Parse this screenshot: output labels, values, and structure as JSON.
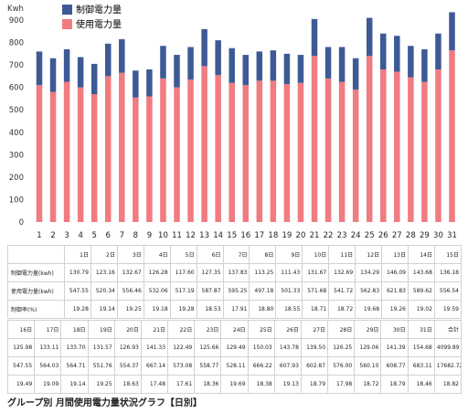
{
  "chart_data": {
    "type": "bar",
    "stacked": true,
    "ylabel": "Kwh",
    "ylim": [
      0,
      900
    ],
    "yticks": [
      0,
      100,
      200,
      300,
      400,
      500,
      600,
      700,
      800,
      900
    ],
    "grid": false,
    "legend_position": "top-left",
    "categories": [
      "1",
      "2",
      "3",
      "4",
      "5",
      "6",
      "7",
      "8",
      "9",
      "10",
      "11",
      "12",
      "13",
      "14",
      "15",
      "16",
      "17",
      "18",
      "19",
      "20",
      "21",
      "22",
      "23",
      "24",
      "25",
      "26",
      "27",
      "28",
      "29",
      "30",
      "31"
    ],
    "series": [
      {
        "name": "使用電力量",
        "color": "#f07b80",
        "values": [
          547.55,
          520.34,
          556.46,
          532.06,
          517.19,
          587.87,
          595.25,
          497.18,
          501.33,
          571.68,
          541.72,
          562.83,
          621.83,
          589.62,
          556.54,
          547.55,
          564.03,
          564.71,
          551.76,
          554.37,
          667.14,
          573.08,
          558.77,
          528.11,
          666.22,
          607.93,
          602.87,
          576.0,
          560.1,
          608.77,
          683.11
        ]
      },
      {
        "name": "制御電力量",
        "color": "#3d5a96",
        "values": [
          130.79,
          123.16,
          132.67,
          126.28,
          117.6,
          127.35,
          137.83,
          113.25,
          111.43,
          131.67,
          132.69,
          134.29,
          146.09,
          143.68,
          136.18,
          125.98,
          133.11,
          133.7,
          131.57,
          126.93,
          141.33,
          122.49,
          125.66,
          129.49,
          150.03,
          143.78,
          139.5,
          126.25,
          129.06,
          141.39,
          154.68
        ]
      }
    ],
    "chart_values_visual": {
      "bottom": [
        610,
        580,
        625,
        600,
        570,
        650,
        665,
        555,
        560,
        640,
        600,
        635,
        695,
        655,
        620,
        610,
        630,
        630,
        615,
        620,
        740,
        640,
        625,
        590,
        740,
        680,
        670,
        645,
        625,
        680,
        765
      ],
      "top": [
        760,
        730,
        770,
        735,
        705,
        795,
        815,
        675,
        680,
        785,
        745,
        780,
        860,
        810,
        775,
        745,
        760,
        765,
        750,
        745,
        905,
        780,
        780,
        730,
        910,
        840,
        830,
        785,
        770,
        840,
        935
      ]
    }
  },
  "table1": {
    "headers": [
      "",
      "1日",
      "2日",
      "3日",
      "4日",
      "5日",
      "6日",
      "7日",
      "8日",
      "9日",
      "10日",
      "11日",
      "12日",
      "13日",
      "14日",
      "15日"
    ],
    "rows": [
      [
        "制御電力量(kwh)",
        "130.79",
        "123.16",
        "132.67",
        "126.28",
        "117.60",
        "127.35",
        "137.83",
        "113.25",
        "111.43",
        "131.67",
        "132.69",
        "134.29",
        "146.09",
        "143.68",
        "136.18"
      ],
      [
        "使用電力量(kwh)",
        "547.55",
        "520.34",
        "556.46",
        "532.06",
        "517.19",
        "587.87",
        "595.25",
        "497.18",
        "501.33",
        "571.68",
        "541.72",
        "562.83",
        "621.83",
        "589.62",
        "556.54"
      ],
      [
        "制御率(%)",
        "19.28",
        "19.14",
        "19.25",
        "19.18",
        "19.28",
        "18.53",
        "17.91",
        "18.80",
        "18.55",
        "18.71",
        "18.72",
        "19.68",
        "19.26",
        "19.02",
        "19.59"
      ]
    ]
  },
  "table2": {
    "headers": [
      "16日",
      "17日",
      "18日",
      "19日",
      "20日",
      "21日",
      "22日",
      "23日",
      "24日",
      "25日",
      "26日",
      "27日",
      "28日",
      "29日",
      "30日",
      "31日",
      "合計"
    ],
    "rows": [
      [
        "125.98",
        "133.11",
        "133.70",
        "131.57",
        "126.93",
        "141.33",
        "122.49",
        "125.66",
        "129.49",
        "150.03",
        "143.78",
        "139.50",
        "126.25",
        "129.06",
        "141.39",
        "154.68",
        "4099.89"
      ],
      [
        "547.55",
        "564.03",
        "564.71",
        "551.76",
        "554.37",
        "667.14",
        "573.08",
        "558.77",
        "528.11",
        "666.22",
        "607.93",
        "602.87",
        "576.00",
        "560.10",
        "608.77",
        "683.11",
        "17682.72"
      ],
      [
        "19.49",
        "19.09",
        "19.14",
        "19.25",
        "18.63",
        "17.48",
        "17.61",
        "18.36",
        "19.69",
        "18.38",
        "19.13",
        "18.79",
        "17.98",
        "18.72",
        "18.79",
        "18.46",
        "18.82"
      ]
    ]
  },
  "footer": {
    "title": "グループ別 月間使用電力量状況グラフ【日別】"
  }
}
